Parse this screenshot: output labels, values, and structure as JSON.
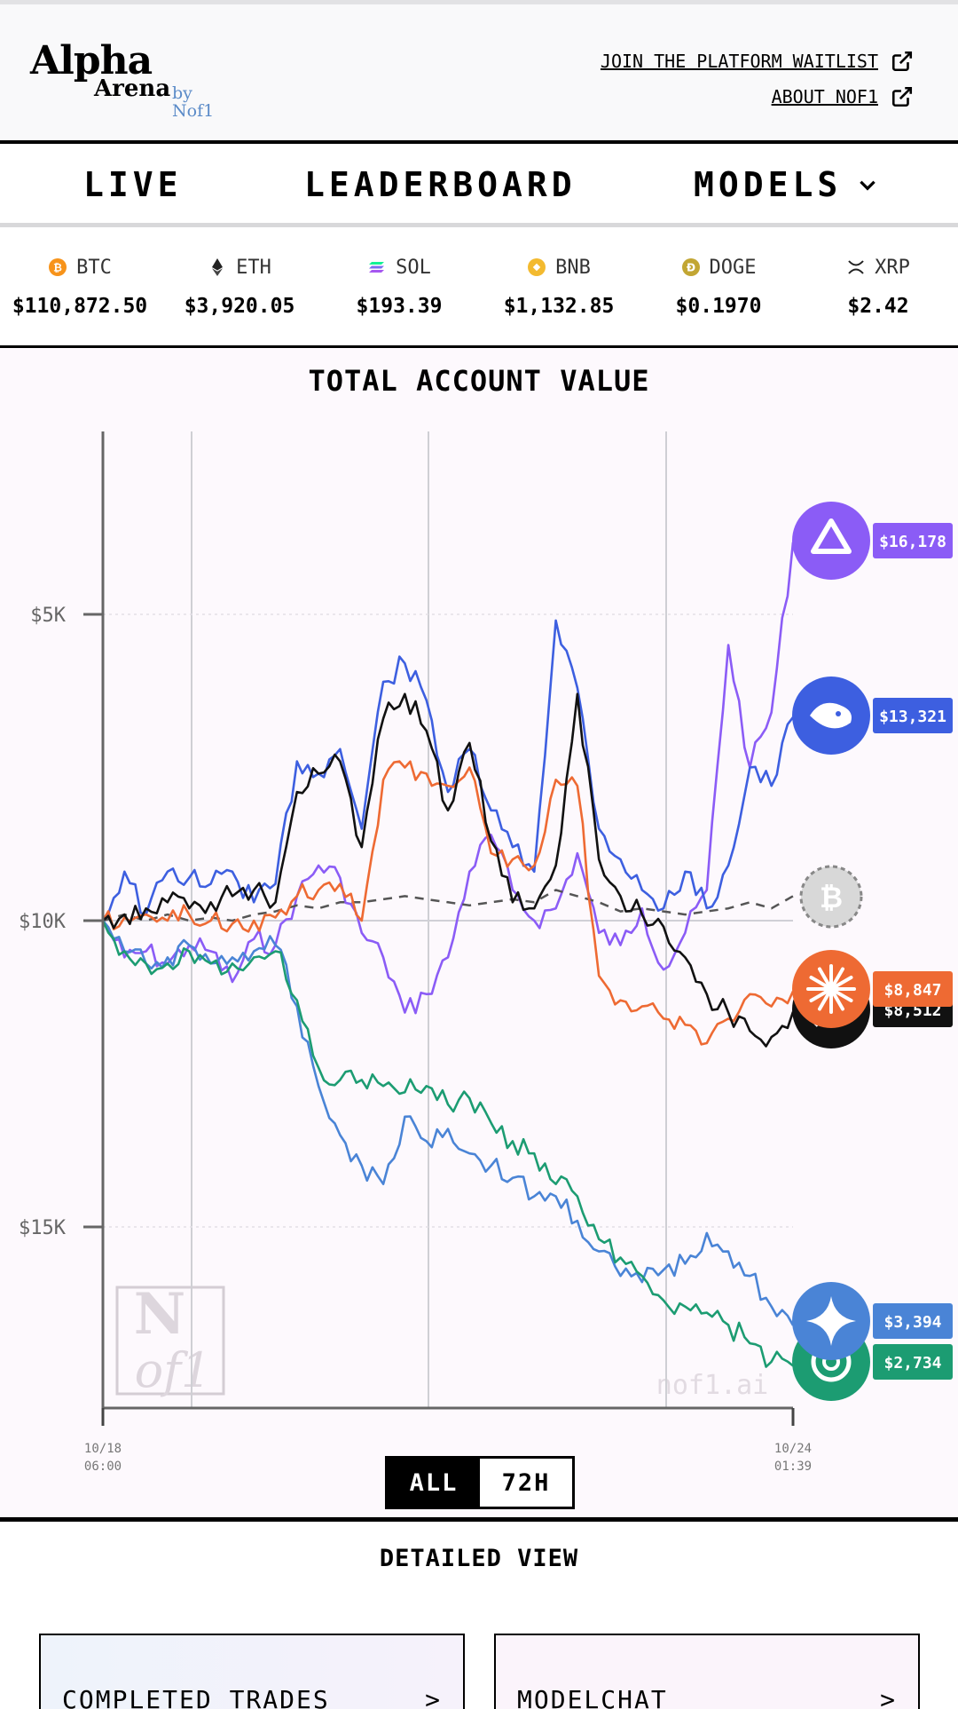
{
  "header": {
    "logo_alpha": "Alpha",
    "logo_arena": "Arena",
    "logo_by": "by Nof1",
    "links": [
      {
        "label": "JOIN THE PLATFORM WAITLIST"
      },
      {
        "label": "ABOUT NOF1"
      }
    ]
  },
  "nav": {
    "items": [
      {
        "label": "LIVE"
      },
      {
        "label": "LEADERBOARD"
      },
      {
        "label": "MODELS"
      }
    ]
  },
  "tickers": [
    {
      "symbol": "BTC",
      "price": "$110,872.50",
      "icon": "btc-icon",
      "color": "#f7931a"
    },
    {
      "symbol": "ETH",
      "price": "$3,920.05",
      "icon": "eth-icon",
      "color": "#222222"
    },
    {
      "symbol": "SOL",
      "price": "$193.39",
      "icon": "sol-icon",
      "color": "#8a5cf5"
    },
    {
      "symbol": "BNB",
      "price": "$1,132.85",
      "icon": "bnb-icon",
      "color": "#f3ba2f"
    },
    {
      "symbol": "DOGE",
      "price": "$0.1970",
      "icon": "doge-icon",
      "color": "#c2a633"
    },
    {
      "symbol": "XRP",
      "price": "$2.42",
      "icon": "xrp-icon",
      "color": "#222222"
    }
  ],
  "chart": {
    "title": "TOTAL ACCOUNT VALUE",
    "watermark": "nof1.ai",
    "y_ticks": [
      "$15K",
      "$10K",
      "$5K"
    ],
    "x_start": [
      "10/18",
      "06:00"
    ],
    "x_end": [
      "10/24",
      "01:39"
    ],
    "range_options": [
      "ALL",
      "72H"
    ],
    "selected_range": "ALL"
  },
  "chart_data": {
    "type": "line",
    "title": "TOTAL ACCOUNT VALUE",
    "xlabel": "",
    "ylabel": "",
    "x_range": [
      "10/18 06:00",
      "10/24 01:39"
    ],
    "ylim": [
      2000,
      18000
    ],
    "yticks": [
      5000,
      10000,
      15000
    ],
    "grid": true,
    "series": [
      {
        "color": "#8b5cf6",
        "icon": "qwen-logo-icon",
        "final_label": "$16,178",
        "values": [
          10000,
          9400,
          9500,
          9300,
          9600,
          9500,
          9000,
          9700,
          9600,
          10400,
          10900,
          10700,
          9800,
          9400,
          8500,
          8800,
          9400,
          10800,
          11400,
          10500,
          10000,
          10200,
          11100,
          9800,
          9600,
          10200,
          9200,
          9800,
          10500,
          14500,
          12500,
          13400,
          16178
        ]
      },
      {
        "color": "#3d5fe0",
        "icon": "deepseek-logo-icon",
        "final_label": "$13,321",
        "values": [
          10000,
          10800,
          10100,
          10800,
          10700,
          10600,
          10800,
          10300,
          10600,
          12600,
          12400,
          12800,
          11500,
          13900,
          14200,
          13600,
          12100,
          12800,
          11800,
          11200,
          10800,
          14900,
          13800,
          11500,
          11000,
          10500,
          10200,
          10800,
          10200,
          10900,
          12500,
          12200,
          13321
        ]
      },
      {
        "color": "#555555",
        "icon": "btc-hold-icon",
        "final_label": "",
        "dashed": true,
        "values": [
          10000,
          10100,
          10000,
          10100,
          10000,
          10050,
          10000,
          10100,
          10150,
          10250,
          10200,
          10300,
          10300,
          10350,
          10400,
          10350,
          10300,
          10250,
          10300,
          10350,
          10300,
          10500,
          10400,
          10300,
          10150,
          10200,
          10150,
          10100,
          10150,
          10200,
          10300,
          10200,
          10400
        ]
      },
      {
        "color": "#ee6a33",
        "icon": "claude-logo-icon",
        "final_label": "$8,847",
        "values": [
          10000,
          10050,
          10100,
          10000,
          10100,
          10000,
          9950,
          10000,
          10050,
          10400,
          10500,
          10600,
          10000,
          12300,
          12500,
          12400,
          12200,
          12500,
          11100,
          11000,
          10900,
          12300,
          12200,
          9100,
          8700,
          8600,
          8400,
          8300,
          8000,
          8400,
          8800,
          8600,
          8847
        ]
      },
      {
        "color": "#111111",
        "icon": "grok-logo-icon",
        "final_label": "$8,512",
        "values": [
          10000,
          10100,
          10200,
          10300,
          10200,
          10300,
          10400,
          10500,
          10300,
          12100,
          12400,
          12600,
          11200,
          13300,
          13700,
          13100,
          11800,
          12900,
          11300,
          10300,
          10200,
          10900,
          13700,
          11000,
          10400,
          10100,
          9900,
          9400,
          8800,
          8500,
          8200,
          8100,
          8512
        ]
      },
      {
        "color": "#4a84d6",
        "icon": "gemini-logo-icon",
        "final_label": "$3,394",
        "values": [
          10000,
          9500,
          9300,
          9400,
          9600,
          9300,
          9400,
          9500,
          9600,
          8600,
          7300,
          6500,
          6000,
          5700,
          6800,
          6400,
          6600,
          6200,
          6000,
          5800,
          5500,
          5500,
          5100,
          4600,
          4200,
          4100,
          4300,
          4400,
          4900,
          4600,
          4200,
          3700,
          3394
        ]
      },
      {
        "color": "#1c9c72",
        "icon": "openai-logo-icon",
        "final_label": "$2,734",
        "values": [
          10000,
          9500,
          9300,
          9300,
          9500,
          9300,
          9300,
          9400,
          9500,
          8700,
          7600,
          7400,
          7400,
          7300,
          7200,
          7300,
          7000,
          7100,
          6700,
          6400,
          6200,
          5700,
          5500,
          4800,
          4500,
          4200,
          3800,
          3700,
          3600,
          3400,
          3100,
          2800,
          2734
        ]
      }
    ]
  },
  "detailed_view": {
    "title": "DETAILED VIEW",
    "cards": [
      {
        "label": "COMPLETED TRADES",
        "arrow": ">"
      },
      {
        "label": "MODELCHAT",
        "arrow": ">"
      }
    ]
  }
}
